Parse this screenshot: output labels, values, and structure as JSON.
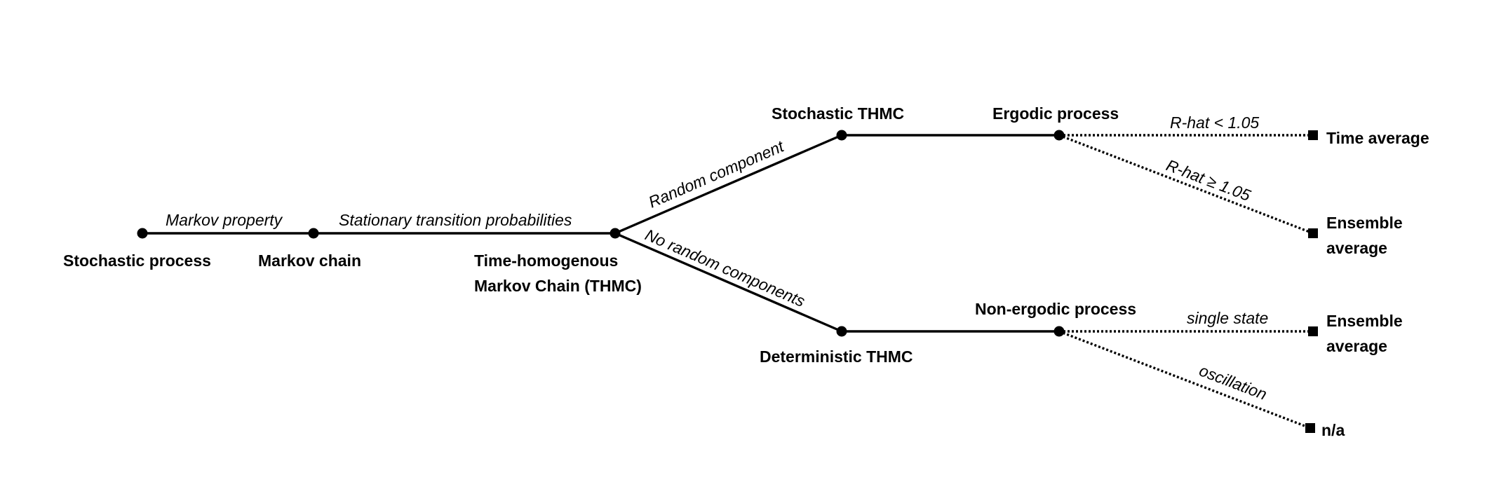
{
  "nodes": {
    "stochastic_process": "Stochastic process",
    "markov_chain": "Markov chain",
    "thmc_line1": "Time-homogenous",
    "thmc_line2": "Markov Chain (THMC)",
    "stochastic_thmc": "Stochastic THMC",
    "deterministic_thmc": "Deterministic THMC",
    "ergodic_process": "Ergodic process",
    "non_ergodic_process": "Non-ergodic process",
    "time_average": "Time average",
    "ensemble_average_1_line1": "Ensemble",
    "ensemble_average_1_line2": "average",
    "ensemble_average_2_line1": "Ensemble",
    "ensemble_average_2_line2": "average",
    "na": "n/a"
  },
  "edges": {
    "markov_property": "Markov property",
    "stationary_transition": "Stationary transition probabilities",
    "random_component": "Random component",
    "no_random_components": "No random components",
    "rhat_lt": "R-hat < 1.05",
    "rhat_ge": "R-hat ≥ 1.05",
    "single_state": "single state",
    "oscillation": "oscillation"
  }
}
